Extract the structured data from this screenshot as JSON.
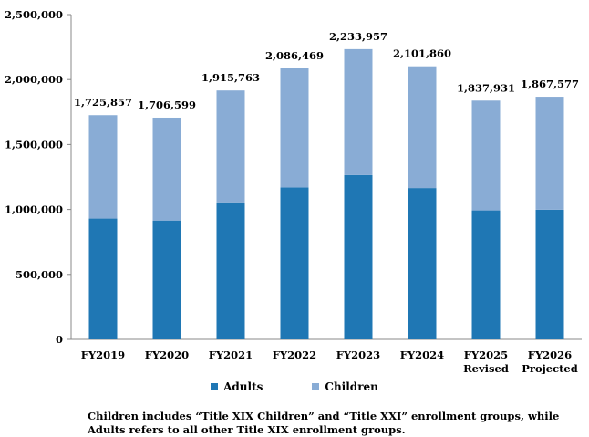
{
  "chart_data": {
    "type": "bar",
    "stacked": true,
    "categories": [
      "FY2019",
      "FY2020",
      "FY2021",
      "FY2022",
      "FY2023",
      "FY2024",
      "FY2025\nRevised",
      "FY2026\nProjected"
    ],
    "series": [
      {
        "name": "Adults",
        "color": "#1f77b4",
        "values": [
          930000,
          915000,
          1055000,
          1170000,
          1265000,
          1165000,
          993000,
          998000
        ]
      },
      {
        "name": "Children",
        "color": "#89acd5",
        "values": [
          795857,
          791599,
          860763,
          916469,
          968957,
          936860,
          844931,
          869577
        ]
      }
    ],
    "totals": [
      1725857,
      1706599,
      1915763,
      2086469,
      2233957,
      2101860,
      1837931,
      1867577
    ],
    "total_labels": [
      "1,725,857",
      "1,706,599",
      "1,915,763",
      "2,086,469",
      "2,233,957",
      "2,101,860",
      "1,837,931",
      "1,867,577"
    ],
    "ylim": [
      0,
      2500000
    ],
    "yticks": [
      0,
      500000,
      1000000,
      1500000,
      2000000,
      2500000
    ],
    "ytick_labels": [
      "0",
      "500,000",
      "1,000,000",
      "1,500,000",
      "2,000,000",
      "2,500,000"
    ],
    "legend_position": "bottom",
    "grid": false
  },
  "legend": {
    "adults_label": "Adults",
    "children_label": "Children",
    "adults_color": "#1f77b4",
    "children_color": "#89acd5"
  },
  "footnote": "Children includes “Title XIX Children” and “Title XXI” enrollment groups, while Adults refers to all other Title XIX enrollment groups."
}
